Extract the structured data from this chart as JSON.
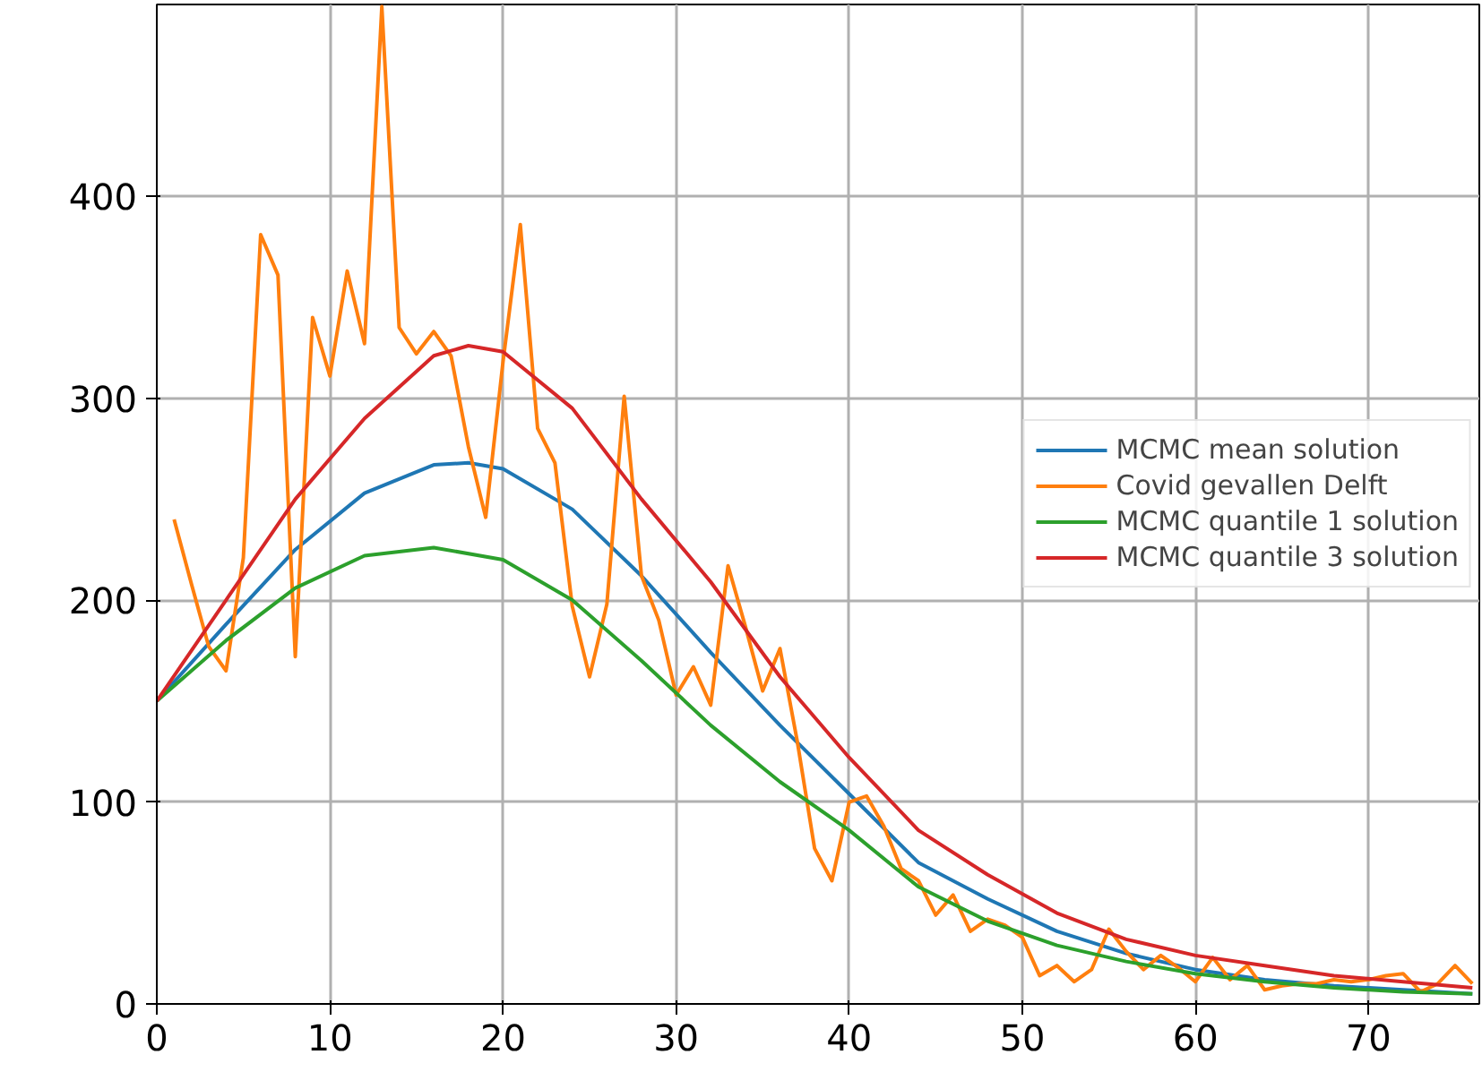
{
  "chart_data": {
    "type": "line",
    "xlim": [
      0,
      76.4
    ],
    "ylim": [
      0,
      495
    ],
    "xticks": [
      0,
      10,
      20,
      30,
      40,
      50,
      60,
      70
    ],
    "yticks": [
      0,
      100,
      200,
      300,
      400
    ],
    "grid": true,
    "legend": "right",
    "line_style": "solid",
    "marker": "none",
    "series": [
      {
        "name": "MCMC mean solution",
        "color": "#1f77b4",
        "x": [
          0,
          4,
          8,
          12,
          16,
          18,
          20,
          24,
          28,
          32,
          36,
          40,
          44,
          48,
          52,
          56,
          60,
          64,
          68,
          72,
          76
        ],
        "values": [
          150,
          188,
          225,
          253,
          267,
          268,
          265,
          245,
          212,
          174,
          138,
          104,
          70,
          52,
          36,
          25,
          17,
          12,
          9,
          7,
          5
        ]
      },
      {
        "name": "Covid gevallen Delft",
        "color": "#ff7f0e",
        "x": [
          1,
          2,
          3,
          4,
          5,
          6,
          7,
          8,
          9,
          10,
          11,
          12,
          13,
          14,
          15,
          16,
          17,
          18,
          19,
          20,
          21,
          22,
          23,
          24,
          25,
          26,
          27,
          28,
          29,
          30,
          31,
          32,
          33,
          34,
          35,
          36,
          37,
          38,
          39,
          40,
          41,
          42,
          43,
          44,
          45,
          46,
          47,
          48,
          49,
          50,
          51,
          52,
          53,
          54,
          55,
          56,
          57,
          58,
          59,
          60,
          61,
          62,
          63,
          64,
          65,
          66,
          67,
          68,
          69,
          70,
          71,
          72,
          73,
          74,
          75,
          76
        ],
        "values": [
          240,
          208,
          177,
          165,
          221,
          381,
          361,
          172,
          340,
          311,
          363,
          327,
          494,
          335,
          322,
          333,
          321,
          276,
          241,
          318,
          386,
          285,
          268,
          197,
          162,
          198,
          301,
          212,
          190,
          153,
          167,
          148,
          217,
          187,
          155,
          176,
          130,
          77,
          61,
          100,
          103,
          88,
          67,
          61,
          44,
          54,
          36,
          42,
          39,
          33,
          14,
          19,
          11,
          17,
          37,
          26,
          17,
          24,
          18,
          11,
          23,
          12,
          19,
          7,
          9,
          10,
          10,
          12,
          11,
          12,
          14,
          15,
          6,
          10,
          19,
          10
        ]
      },
      {
        "name": "MCMC quantile 1 solution",
        "color": "#2ca02c",
        "x": [
          0,
          4,
          8,
          12,
          16,
          20,
          24,
          28,
          32,
          36,
          40,
          44,
          48,
          52,
          56,
          60,
          64,
          68,
          72,
          76
        ],
        "values": [
          150,
          180,
          206,
          222,
          226,
          220,
          200,
          170,
          138,
          110,
          86,
          58,
          41,
          29,
          21,
          15,
          11,
          8,
          6,
          5
        ]
      },
      {
        "name": "MCMC quantile 3 solution",
        "color": "#d62728",
        "x": [
          0,
          4,
          8,
          12,
          16,
          18,
          20,
          24,
          28,
          32,
          36,
          40,
          44,
          48,
          52,
          56,
          60,
          64,
          68,
          72,
          76
        ],
        "values": [
          150,
          200,
          250,
          290,
          321,
          326,
          323,
          295,
          250,
          209,
          162,
          122,
          86,
          64,
          45,
          32,
          24,
          19,
          14,
          11,
          8
        ]
      }
    ]
  }
}
